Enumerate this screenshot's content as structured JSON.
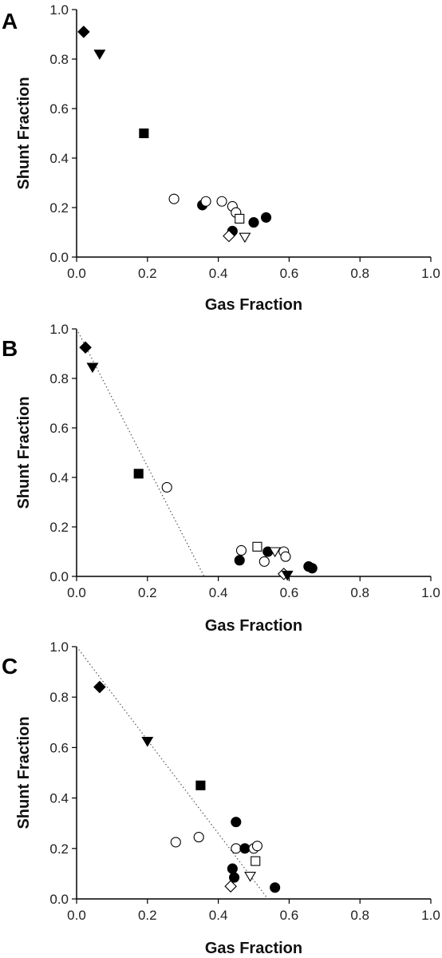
{
  "chart_data": [
    {
      "type": "scatter",
      "panel": "A",
      "xlabel": "Gas Fraction",
      "ylabel": "Shunt Fraction",
      "xlim": [
        0,
        1.0
      ],
      "ylim": [
        0,
        1.0
      ],
      "xticks": [
        "0.0",
        "0.2",
        "0.4",
        "0.6",
        "0.8",
        "1.0"
      ],
      "yticks": [
        "0.0",
        "0.2",
        "0.4",
        "0.6",
        "0.8",
        "1.0"
      ],
      "grid": false,
      "points": [
        {
          "x": 0.02,
          "y": 0.91,
          "marker": "diamond",
          "filled": true
        },
        {
          "x": 0.065,
          "y": 0.82,
          "marker": "triangle-down",
          "filled": true
        },
        {
          "x": 0.19,
          "y": 0.5,
          "marker": "square",
          "filled": true
        },
        {
          "x": 0.275,
          "y": 0.235,
          "marker": "circle",
          "filled": false
        },
        {
          "x": 0.355,
          "y": 0.21,
          "marker": "circle",
          "filled": true
        },
        {
          "x": 0.365,
          "y": 0.225,
          "marker": "circle",
          "filled": false
        },
        {
          "x": 0.41,
          "y": 0.225,
          "marker": "circle",
          "filled": false
        },
        {
          "x": 0.44,
          "y": 0.205,
          "marker": "circle",
          "filled": false
        },
        {
          "x": 0.45,
          "y": 0.18,
          "marker": "circle",
          "filled": false
        },
        {
          "x": 0.46,
          "y": 0.155,
          "marker": "square",
          "filled": false
        },
        {
          "x": 0.5,
          "y": 0.14,
          "marker": "circle",
          "filled": true
        },
        {
          "x": 0.535,
          "y": 0.16,
          "marker": "circle",
          "filled": true
        },
        {
          "x": 0.44,
          "y": 0.105,
          "marker": "circle",
          "filled": true
        },
        {
          "x": 0.43,
          "y": 0.085,
          "marker": "diamond",
          "filled": false
        },
        {
          "x": 0.475,
          "y": 0.08,
          "marker": "triangle-down",
          "filled": false
        }
      ]
    },
    {
      "type": "scatter",
      "panel": "B",
      "xlabel": "Gas Fraction",
      "ylabel": "Shunt Fraction",
      "xlim": [
        0,
        1.0
      ],
      "ylim": [
        0,
        1.0
      ],
      "xticks": [
        "0.0",
        "0.2",
        "0.4",
        "0.6",
        "0.8",
        "1.0"
      ],
      "yticks": [
        "0.0",
        "0.2",
        "0.4",
        "0.6",
        "0.8",
        "1.0"
      ],
      "grid": false,
      "trendline": {
        "x": [
          0,
          0.36
        ],
        "y": [
          1.0,
          0.0
        ],
        "style": "dotted"
      },
      "points": [
        {
          "x": 0.025,
          "y": 0.925,
          "marker": "diamond",
          "filled": true
        },
        {
          "x": 0.045,
          "y": 0.845,
          "marker": "triangle-down",
          "filled": true
        },
        {
          "x": 0.175,
          "y": 0.415,
          "marker": "square",
          "filled": true
        },
        {
          "x": 0.255,
          "y": 0.36,
          "marker": "circle",
          "filled": false
        },
        {
          "x": 0.46,
          "y": 0.065,
          "marker": "circle",
          "filled": true
        },
        {
          "x": 0.465,
          "y": 0.105,
          "marker": "circle",
          "filled": false
        },
        {
          "x": 0.51,
          "y": 0.12,
          "marker": "square",
          "filled": false
        },
        {
          "x": 0.53,
          "y": 0.06,
          "marker": "circle",
          "filled": false
        },
        {
          "x": 0.54,
          "y": 0.1,
          "marker": "circle",
          "filled": true
        },
        {
          "x": 0.56,
          "y": 0.1,
          "marker": "triangle-down",
          "filled": false
        },
        {
          "x": 0.585,
          "y": 0.1,
          "marker": "circle",
          "filled": false
        },
        {
          "x": 0.59,
          "y": 0.08,
          "marker": "circle",
          "filled": false
        },
        {
          "x": 0.585,
          "y": 0.01,
          "marker": "diamond",
          "filled": false
        },
        {
          "x": 0.595,
          "y": 0.005,
          "marker": "triangle-down",
          "filled": true
        },
        {
          "x": 0.655,
          "y": 0.04,
          "marker": "circle",
          "filled": true
        },
        {
          "x": 0.665,
          "y": 0.033,
          "marker": "circle",
          "filled": true
        }
      ]
    },
    {
      "type": "scatter",
      "panel": "C",
      "xlabel": "Gas Fraction",
      "ylabel": "Shunt Fraction",
      "xlim": [
        0,
        1.0
      ],
      "ylim": [
        0,
        1.0
      ],
      "xticks": [
        "0.0",
        "0.2",
        "0.4",
        "0.6",
        "0.8",
        "1.0"
      ],
      "yticks": [
        "0.0",
        "0.2",
        "0.4",
        "0.6",
        "0.8",
        "1.0"
      ],
      "grid": false,
      "trendline": {
        "x": [
          0,
          0.54
        ],
        "y": [
          1.0,
          0.0
        ],
        "style": "dotted"
      },
      "points": [
        {
          "x": 0.065,
          "y": 0.84,
          "marker": "diamond",
          "filled": true
        },
        {
          "x": 0.2,
          "y": 0.625,
          "marker": "triangle-down",
          "filled": true
        },
        {
          "x": 0.35,
          "y": 0.45,
          "marker": "square",
          "filled": true
        },
        {
          "x": 0.28,
          "y": 0.225,
          "marker": "circle",
          "filled": false
        },
        {
          "x": 0.345,
          "y": 0.245,
          "marker": "circle",
          "filled": false
        },
        {
          "x": 0.45,
          "y": 0.305,
          "marker": "circle",
          "filled": true
        },
        {
          "x": 0.45,
          "y": 0.2,
          "marker": "circle",
          "filled": false
        },
        {
          "x": 0.475,
          "y": 0.2,
          "marker": "circle",
          "filled": true
        },
        {
          "x": 0.5,
          "y": 0.2,
          "marker": "circle",
          "filled": false
        },
        {
          "x": 0.51,
          "y": 0.21,
          "marker": "circle",
          "filled": false
        },
        {
          "x": 0.44,
          "y": 0.12,
          "marker": "circle",
          "filled": true
        },
        {
          "x": 0.445,
          "y": 0.085,
          "marker": "circle",
          "filled": true
        },
        {
          "x": 0.505,
          "y": 0.15,
          "marker": "square",
          "filled": false
        },
        {
          "x": 0.435,
          "y": 0.05,
          "marker": "diamond",
          "filled": false
        },
        {
          "x": 0.49,
          "y": 0.09,
          "marker": "triangle-down",
          "filled": false
        },
        {
          "x": 0.56,
          "y": 0.045,
          "marker": "circle",
          "filled": true
        }
      ]
    }
  ]
}
